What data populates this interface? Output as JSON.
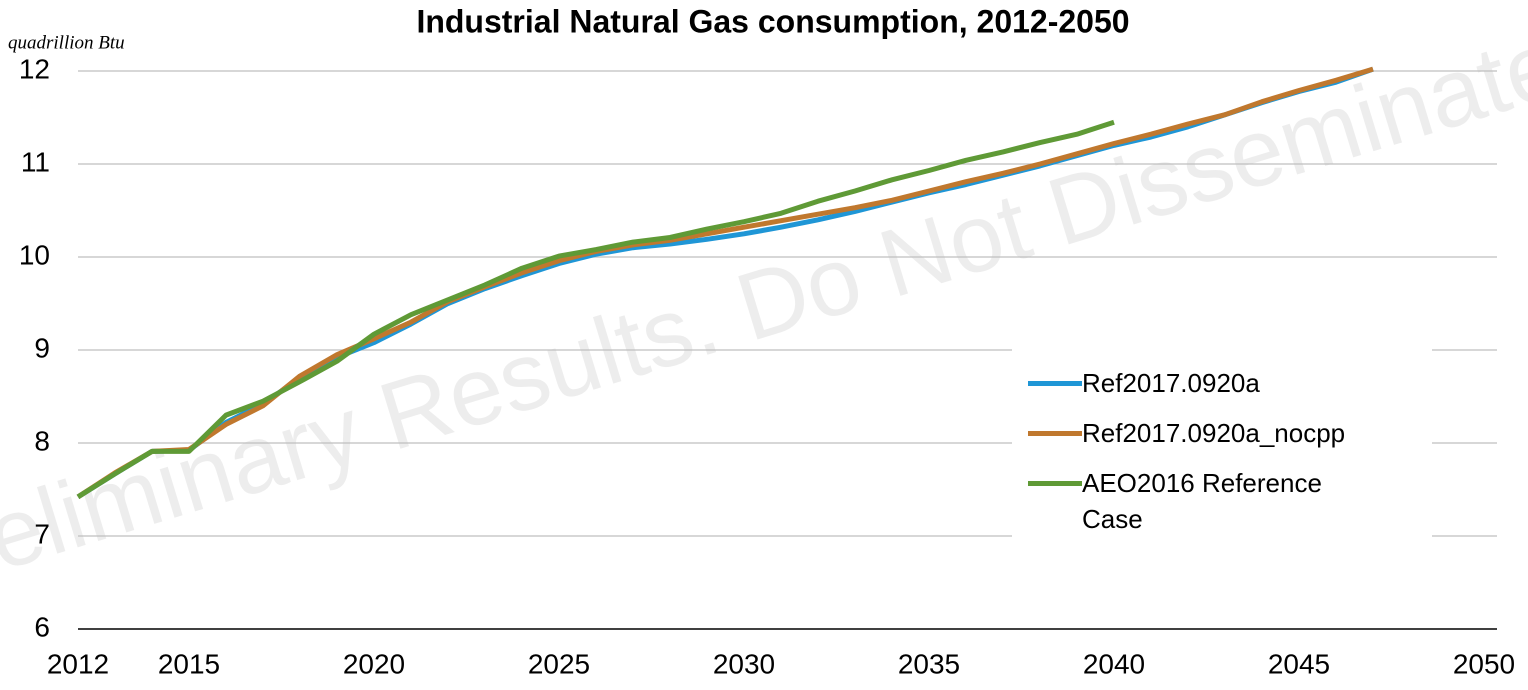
{
  "chart_data": {
    "type": "line",
    "title": "Industrial Natural Gas consumption, 2012-2050",
    "y_axis_label": "quadrillion Btu",
    "watermark": "Preliminary Results. Do Not Disseminate.",
    "x": [
      2012,
      2013,
      2014,
      2015,
      2016,
      2017,
      2018,
      2019,
      2020,
      2021,
      2022,
      2023,
      2024,
      2025,
      2026,
      2027,
      2028,
      2029,
      2030,
      2031,
      2032,
      2033,
      2034,
      2035,
      2036,
      2037,
      2038,
      2039,
      2040,
      2041,
      2042,
      2043,
      2044,
      2045,
      2046,
      2047
    ],
    "series": [
      {
        "name": "Ref2017.0920a",
        "color": "#1f96d6",
        "values": [
          7.42,
          7.67,
          7.91,
          7.92,
          8.22,
          8.42,
          8.7,
          8.92,
          9.08,
          9.28,
          9.5,
          9.66,
          9.8,
          9.93,
          10.03,
          10.1,
          10.14,
          10.19,
          10.25,
          10.32,
          10.4,
          10.49,
          10.59,
          10.69,
          10.78,
          10.88,
          10.98,
          11.09,
          11.2,
          11.29,
          11.4,
          11.53,
          11.66,
          11.78,
          11.88,
          12.02
        ]
      },
      {
        "name": "Ref2017.0920a_nocpp",
        "color": "#c0782e",
        "values": [
          7.42,
          7.68,
          7.91,
          7.93,
          8.2,
          8.4,
          8.72,
          8.95,
          9.12,
          9.3,
          9.52,
          9.68,
          9.83,
          9.96,
          10.06,
          10.13,
          10.18,
          10.25,
          10.32,
          10.39,
          10.46,
          10.53,
          10.61,
          10.71,
          10.81,
          10.9,
          11.0,
          11.11,
          11.22,
          11.32,
          11.43,
          11.53,
          11.67,
          11.79,
          11.9,
          12.02
        ]
      },
      {
        "name": "AEO2016 Reference Case",
        "color": "#5f9a36",
        "values": [
          7.42,
          7.67,
          7.91,
          7.91,
          8.3,
          8.45,
          8.66,
          8.88,
          9.17,
          9.38,
          9.54,
          9.7,
          9.88,
          10.01,
          10.08,
          10.16,
          10.21,
          10.3,
          10.38,
          10.47,
          10.6,
          10.71,
          10.83,
          10.93,
          11.04,
          11.13,
          11.23,
          11.32,
          11.45,
          null,
          null,
          null,
          null,
          null,
          null,
          null
        ]
      }
    ],
    "xlim": [
      2012,
      2050
    ],
    "xticks": [
      2012,
      2015,
      2020,
      2025,
      2030,
      2035,
      2040,
      2045,
      2050
    ],
    "ylim": [
      6,
      12
    ],
    "yticks": [
      6,
      7,
      8,
      9,
      10,
      11,
      12
    ],
    "grid": true,
    "legend": "right"
  }
}
